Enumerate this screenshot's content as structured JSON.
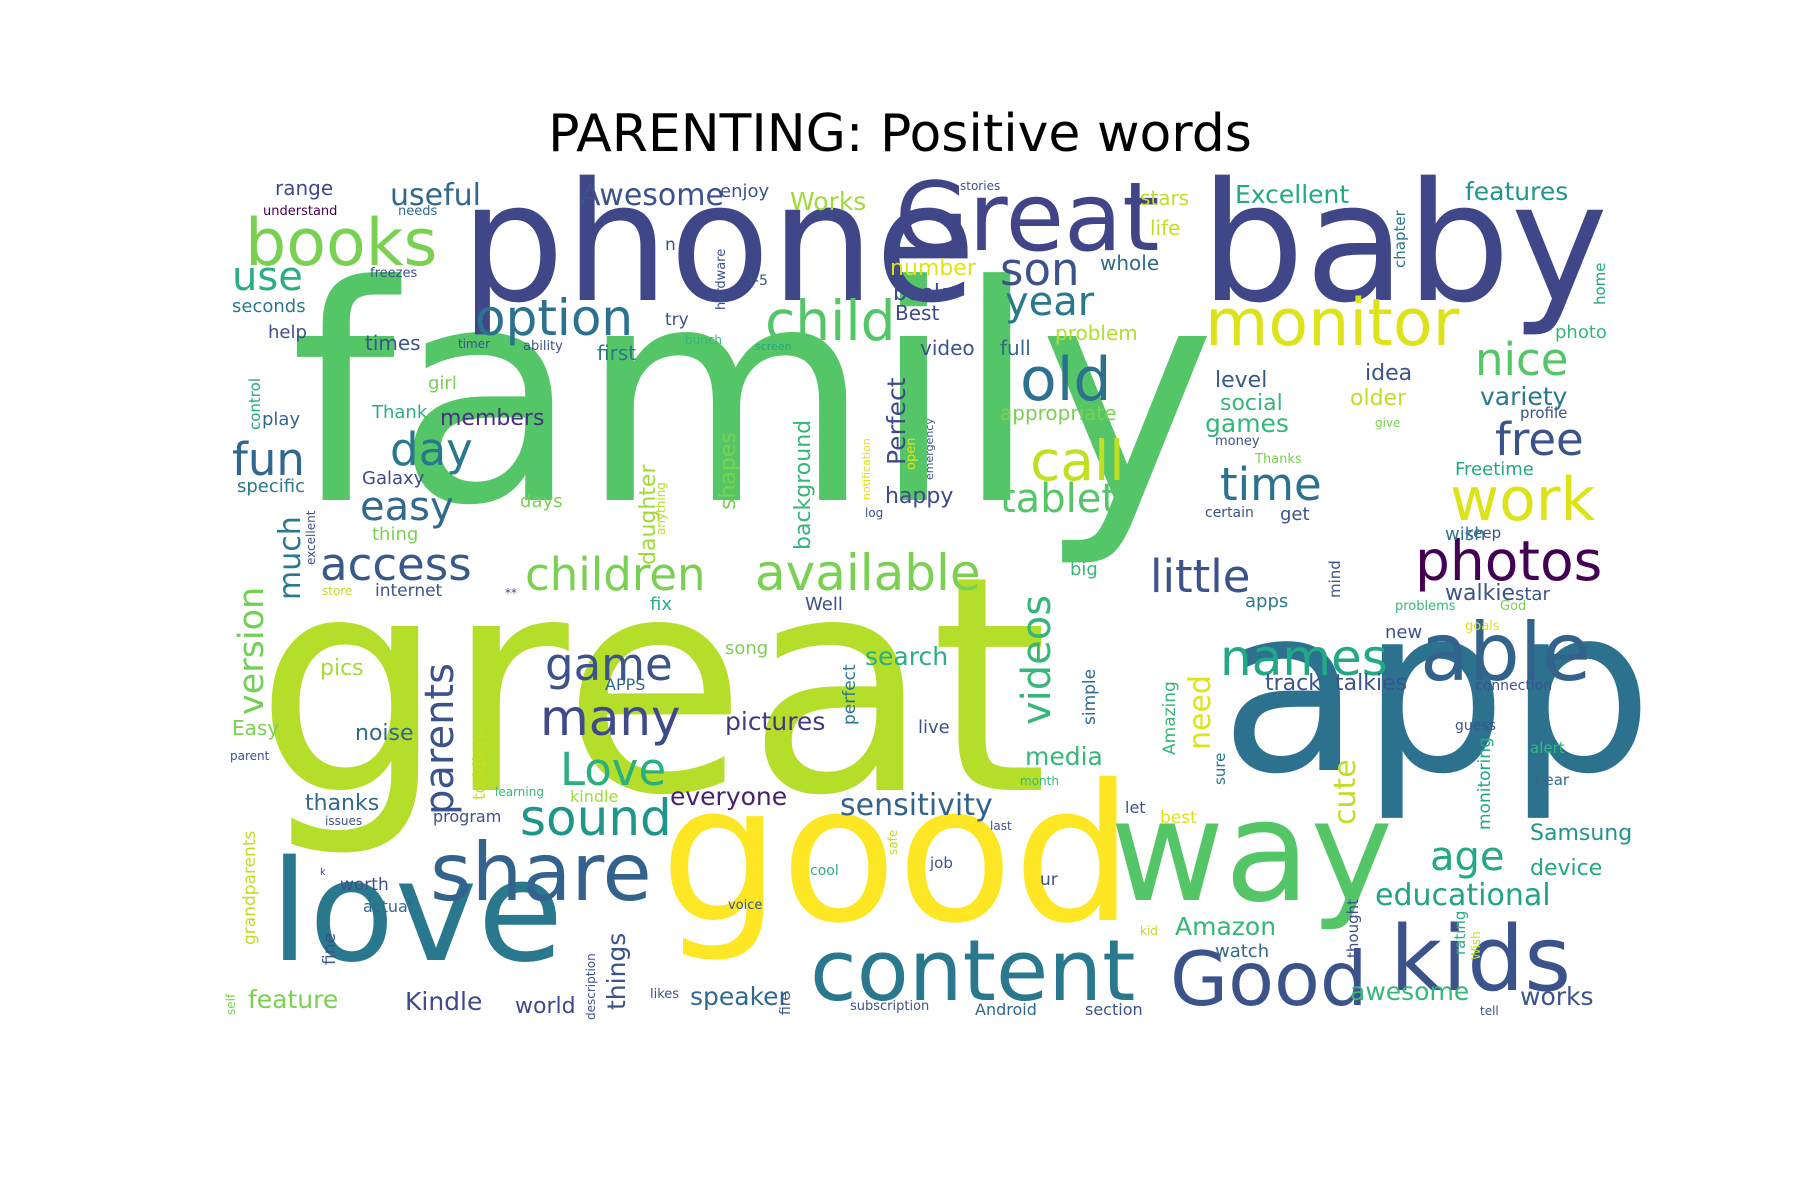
{
  "title": "PARENTING: Positive words",
  "words": [
    {
      "t": "family",
      "c": "#55c667"
    },
    {
      "t": "great",
      "c": "#b5de2b"
    },
    {
      "t": "app",
      "c": "#2c728e"
    },
    {
      "t": "good",
      "c": "#fde725"
    },
    {
      "t": "phone",
      "c": "#3f4788"
    },
    {
      "t": "baby",
      "c": "#3f4788"
    },
    {
      "t": "love",
      "c": "#2a788e"
    },
    {
      "t": "way",
      "c": "#55c667"
    },
    {
      "t": "Great",
      "c": "#414487"
    },
    {
      "t": "content",
      "c": "#2a788e"
    },
    {
      "t": "kids",
      "c": "#3b528b"
    },
    {
      "t": "share",
      "c": "#33638d"
    },
    {
      "t": "Good",
      "c": "#3b528b"
    },
    {
      "t": "able",
      "c": "#33638d"
    },
    {
      "t": "monitor",
      "c": "#dde318"
    },
    {
      "t": "books",
      "c": "#7ad151"
    },
    {
      "t": "photos",
      "c": "#440154"
    },
    {
      "t": "old",
      "c": "#2c728e"
    },
    {
      "t": "child",
      "c": "#55c667"
    },
    {
      "t": "work",
      "c": "#dde318"
    },
    {
      "t": "available",
      "c": "#7ad151"
    },
    {
      "t": "children",
      "c": "#7ad151"
    },
    {
      "t": "option",
      "c": "#2c728e"
    },
    {
      "t": "call",
      "c": "#c2df23"
    },
    {
      "t": "tablet",
      "c": "#55c667"
    },
    {
      "t": "time",
      "c": "#2c728e"
    },
    {
      "t": "names",
      "c": "#22a884"
    },
    {
      "t": "sound",
      "c": "#1f968b"
    },
    {
      "t": "little",
      "c": "#3b528b"
    },
    {
      "t": "nice",
      "c": "#55c667"
    },
    {
      "t": "many",
      "c": "#3e4a89"
    },
    {
      "t": "Love",
      "c": "#2ab07f"
    },
    {
      "t": "game",
      "c": "#3b528b"
    },
    {
      "t": "access",
      "c": "#38598c"
    },
    {
      "t": "free",
      "c": "#3b528b"
    },
    {
      "t": "fun",
      "c": "#31688e"
    },
    {
      "t": "day",
      "c": "#2a788e"
    },
    {
      "t": "year",
      "c": "#2a788e"
    },
    {
      "t": "son",
      "c": "#3b528b"
    },
    {
      "t": "easy",
      "c": "#31688e"
    },
    {
      "t": "age",
      "c": "#22a884"
    },
    {
      "t": "use",
      "c": "#2ab07f"
    },
    {
      "t": "parents",
      "c": "#3b528b"
    },
    {
      "t": "videos",
      "c": "#35b779"
    },
    {
      "t": "version",
      "c": "#73d056"
    },
    {
      "t": "much",
      "c": "#2a788e"
    },
    {
      "t": "sensitivity",
      "c": "#33638d"
    },
    {
      "t": "educational",
      "c": "#20a386"
    },
    {
      "t": "Awesome",
      "c": "#3b528b"
    },
    {
      "t": "useful",
      "c": "#31688e"
    },
    {
      "t": "Excellent",
      "c": "#22a884"
    },
    {
      "t": "Works",
      "c": "#a0da39"
    },
    {
      "t": "features",
      "c": "#1f968b"
    },
    {
      "t": "everyone",
      "c": "#481f70"
    },
    {
      "t": "pictures",
      "c": "#453781"
    },
    {
      "t": "Amazon",
      "c": "#35b779"
    },
    {
      "t": "awesome",
      "c": "#35b779"
    },
    {
      "t": "Kindle",
      "c": "#3e4a89"
    },
    {
      "t": "works",
      "c": "#3b528b"
    },
    {
      "t": "speaker",
      "c": "#31688e"
    },
    {
      "t": "world",
      "c": "#3e4a89"
    },
    {
      "t": "feature",
      "c": "#7ad151"
    },
    {
      "t": "things",
      "c": "#3b528b"
    },
    {
      "t": "search",
      "c": "#2ab07f"
    },
    {
      "t": "cute",
      "c": "#bddf26"
    },
    {
      "t": "need",
      "c": "#dde318"
    },
    {
      "t": "media",
      "c": "#35b779"
    },
    {
      "t": "noise",
      "c": "#31688e"
    },
    {
      "t": "thanks",
      "c": "#31688e"
    },
    {
      "t": "pics",
      "c": "#a5db36"
    },
    {
      "t": "Easy",
      "c": "#7ad151"
    },
    {
      "t": "members",
      "c": "#46327e"
    },
    {
      "t": "walkie",
      "c": "#3b528b"
    },
    {
      "t": "talkies",
      "c": "#3b528b"
    },
    {
      "t": "track",
      "c": "#3b528b"
    },
    {
      "t": "Samsung",
      "c": "#1f968b"
    },
    {
      "t": "device",
      "c": "#22a884"
    },
    {
      "t": "games",
      "c": "#35b779"
    },
    {
      "t": "variety",
      "c": "#2a788e"
    },
    {
      "t": "level",
      "c": "#38598c"
    },
    {
      "t": "social",
      "c": "#35b779"
    },
    {
      "t": "idea",
      "c": "#3b528b"
    },
    {
      "t": "older",
      "c": "#bddf26"
    },
    {
      "t": "Perfect",
      "c": "#3e4a89"
    },
    {
      "t": "happy",
      "c": "#3e4a89"
    },
    {
      "t": "background",
      "c": "#35b779"
    },
    {
      "t": "shapes",
      "c": "#7ad151"
    },
    {
      "t": "daughter",
      "c": "#a0da39"
    },
    {
      "t": "appropriate",
      "c": "#7ad151"
    },
    {
      "t": "problem",
      "c": "#b5de2b"
    },
    {
      "t": "whole",
      "c": "#31688e"
    },
    {
      "t": "life",
      "c": "#c2df23"
    },
    {
      "t": "stars",
      "c": "#bddf26"
    },
    {
      "t": "number",
      "c": "#dde318"
    },
    {
      "t": "book",
      "c": "#3e4a89"
    },
    {
      "t": "Best",
      "c": "#3e4a89"
    },
    {
      "t": "video",
      "c": "#3b528b"
    },
    {
      "t": "full",
      "c": "#31688e"
    },
    {
      "t": "first",
      "c": "#2a788e"
    },
    {
      "t": "times",
      "c": "#3b528b"
    },
    {
      "t": "range",
      "c": "#3e4a89"
    },
    {
      "t": "enjoy",
      "c": "#3b528b"
    },
    {
      "t": "seconds",
      "c": "#2a788e"
    },
    {
      "t": "help",
      "c": "#3b528b"
    },
    {
      "t": "play",
      "c": "#31688e"
    },
    {
      "t": "girl",
      "c": "#7ad151"
    },
    {
      "t": "Thank",
      "c": "#2ab07f"
    },
    {
      "t": "Galaxy",
      "c": "#3e4a89"
    },
    {
      "t": "specific",
      "c": "#2a788e"
    },
    {
      "t": "thing",
      "c": "#7ad151"
    },
    {
      "t": "internet",
      "c": "#3b528b"
    },
    {
      "t": "days",
      "c": "#7ad151"
    },
    {
      "t": "fix",
      "c": "#2ab07f"
    },
    {
      "t": "Well",
      "c": "#3b528b"
    },
    {
      "t": "big",
      "c": "#35b779"
    },
    {
      "t": "get",
      "c": "#3b528b"
    },
    {
      "t": "keep",
      "c": "#3b528b"
    },
    {
      "t": "wish",
      "c": "#2a788e"
    },
    {
      "t": "Freetime",
      "c": "#22a884"
    },
    {
      "t": "star",
      "c": "#3b528b"
    },
    {
      "t": "apps",
      "c": "#2a788e"
    },
    {
      "t": "new",
      "c": "#3b528b"
    },
    {
      "t": "song",
      "c": "#7ad151"
    },
    {
      "t": "live",
      "c": "#3b528b"
    },
    {
      "t": "simple",
      "c": "#31688e"
    },
    {
      "t": "perfect",
      "c": "#2a788e"
    },
    {
      "t": "APPS",
      "c": "#31688e"
    },
    {
      "t": "toddlers",
      "c": "#c2df23"
    },
    {
      "t": "grandparents",
      "c": "#bddf26"
    },
    {
      "t": "fine",
      "c": "#3b528b"
    },
    {
      "t": "worth",
      "c": "#3b528b"
    },
    {
      "t": "actual",
      "c": "#31688e"
    },
    {
      "t": "program",
      "c": "#3b528b"
    },
    {
      "t": "kindle",
      "c": "#a0da39"
    },
    {
      "t": "best",
      "c": "#dde318"
    },
    {
      "t": "let",
      "c": "#3b528b"
    },
    {
      "t": "ur",
      "c": "#3b528b"
    },
    {
      "t": "job",
      "c": "#3b528b"
    },
    {
      "t": "watch",
      "c": "#31688e"
    },
    {
      "t": "thought",
      "c": "#3b528b"
    },
    {
      "t": "rating",
      "c": "#2ab07f"
    },
    {
      "t": "monitoring",
      "c": "#22a884"
    },
    {
      "t": "alert",
      "c": "#35b779"
    },
    {
      "t": "hear",
      "c": "#31688e"
    },
    {
      "t": "connection",
      "c": "#3b528b"
    },
    {
      "t": "guess",
      "c": "#3b528b"
    },
    {
      "t": "sure",
      "c": "#2a788e"
    },
    {
      "t": "Amazing",
      "c": "#35b779"
    },
    {
      "t": "mind",
      "c": "#3b528b"
    },
    {
      "t": "photo",
      "c": "#35b779"
    },
    {
      "t": "home",
      "c": "#22a884"
    },
    {
      "t": "chapter",
      "c": "#2a788e"
    },
    {
      "t": "profile",
      "c": "#3b528b"
    },
    {
      "t": "give",
      "c": "#7ad151"
    },
    {
      "t": "money",
      "c": "#3b528b"
    },
    {
      "t": "Thanks",
      "c": "#7ad151"
    },
    {
      "t": "certain",
      "c": "#3b528b"
    },
    {
      "t": "problems",
      "c": "#35b779"
    },
    {
      "t": "God",
      "c": "#7ad151"
    },
    {
      "t": "goals",
      "c": "#dde318"
    },
    {
      "t": "stories",
      "c": "#3b528b"
    },
    {
      "t": "understand",
      "c": "#440154"
    },
    {
      "t": "needs",
      "c": "#31688e"
    },
    {
      "t": "freezes",
      "c": "#3b528b"
    },
    {
      "t": "n",
      "c": "#3b528b"
    },
    {
      "t": "3-5",
      "c": "#3b528b"
    },
    {
      "t": "try",
      "c": "#3b528b"
    },
    {
      "t": "hardware",
      "c": "#3b528b"
    },
    {
      "t": "bunch",
      "c": "#35b779"
    },
    {
      "t": "ability",
      "c": "#3b528b"
    },
    {
      "t": "timer",
      "c": "#3b528b"
    },
    {
      "t": "screen",
      "c": "#22a884"
    },
    {
      "t": "control",
      "c": "#22a884"
    },
    {
      "t": "open",
      "c": "#dde318"
    },
    {
      "t": "emergency",
      "c": "#3b528b"
    },
    {
      "t": "notification",
      "c": "#dde318"
    },
    {
      "t": "log",
      "c": "#3b528b"
    },
    {
      "t": "anything",
      "c": "#b5de2b"
    },
    {
      "t": "excellent",
      "c": "#3b528b"
    },
    {
      "t": "store",
      "c": "#bddf26"
    },
    {
      "t": "**",
      "c": "#3b528b"
    },
    {
      "t": "learning",
      "c": "#35b779"
    },
    {
      "t": "issues",
      "c": "#3b528b"
    },
    {
      "t": "parent",
      "c": "#3b528b"
    },
    {
      "t": "month",
      "c": "#35b779"
    },
    {
      "t": "last",
      "c": "#3b528b"
    },
    {
      "t": "safe",
      "c": "#c2df23"
    },
    {
      "t": "cool",
      "c": "#2ab07f"
    },
    {
      "t": "voice",
      "c": "#3b528b"
    },
    {
      "t": "description",
      "c": "#3b528b"
    },
    {
      "t": "fire",
      "c": "#3b528b"
    },
    {
      "t": "likes",
      "c": "#3b528b"
    },
    {
      "t": "subscription",
      "c": "#3b528b"
    },
    {
      "t": "Android",
      "c": "#31688e"
    },
    {
      "t": "section",
      "c": "#3b528b"
    },
    {
      "t": "tell",
      "c": "#3b528b"
    },
    {
      "t": "kid",
      "c": "#b5de2b"
    },
    {
      "t": "Wish",
      "c": "#bddf26"
    },
    {
      "t": "k",
      "c": "#3b528b"
    },
    {
      "t": "self",
      "c": "#7ad151"
    }
  ]
}
